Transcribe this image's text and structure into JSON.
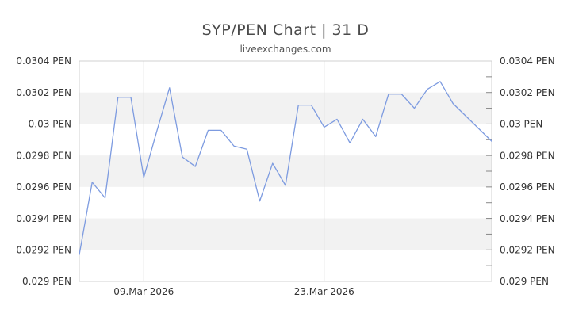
{
  "page": {
    "title": "SYP/PEN Chart | 31 D",
    "subtitle": "liveexchanges.com"
  },
  "chart_data": {
    "type": "line",
    "title": "SYP/PEN Chart | 31 D",
    "subtitle": "liveexchanges.com",
    "base_currency": "SYP",
    "quote_currency": "PEN",
    "period_label": "31 D",
    "unit_suffix": "PEN",
    "ylim": [
      0.029,
      0.0304
    ],
    "y_major_step": 0.0002,
    "y_minor_step": 0.0001,
    "y_tick_labels": [
      "0.0304 PEN",
      "0.0302 PEN",
      "0.03 PEN",
      "0.0298 PEN",
      "0.0296 PEN",
      "0.0294 PEN",
      "0.0292 PEN",
      "0.029 PEN"
    ],
    "y_axis_sides": [
      "left",
      "right"
    ],
    "x_ticks": [
      {
        "position": 5,
        "label": "09.Mar 2026"
      },
      {
        "position": 19,
        "label": "23.Mar 2026"
      }
    ],
    "values": [
      0.02917,
      0.02963,
      0.02953,
      0.03017,
      0.03017,
      0.02966,
      0.02995,
      0.03023,
      0.02979,
      0.02973,
      0.02996,
      0.02996,
      0.02986,
      0.02984,
      0.02951,
      0.02975,
      0.02961,
      0.03012,
      0.03012,
      0.02998,
      0.03003,
      0.02988,
      0.03003,
      0.02992,
      0.03019,
      0.03019,
      0.0301,
      0.03022,
      0.03027,
      0.03013,
      0.03005,
      0.02997,
      0.02989
    ],
    "grid": "horizontal-bands-alternating",
    "legend": false,
    "colors": {
      "line": "#7d9be0",
      "band": "#f2f2f2",
      "plot_border": "#d0d0d0",
      "gridline": "#d8d8d8",
      "tick": "#888888",
      "axis_label": "#333333",
      "title": "#4a4a4a",
      "subtitle": "#555555"
    }
  }
}
